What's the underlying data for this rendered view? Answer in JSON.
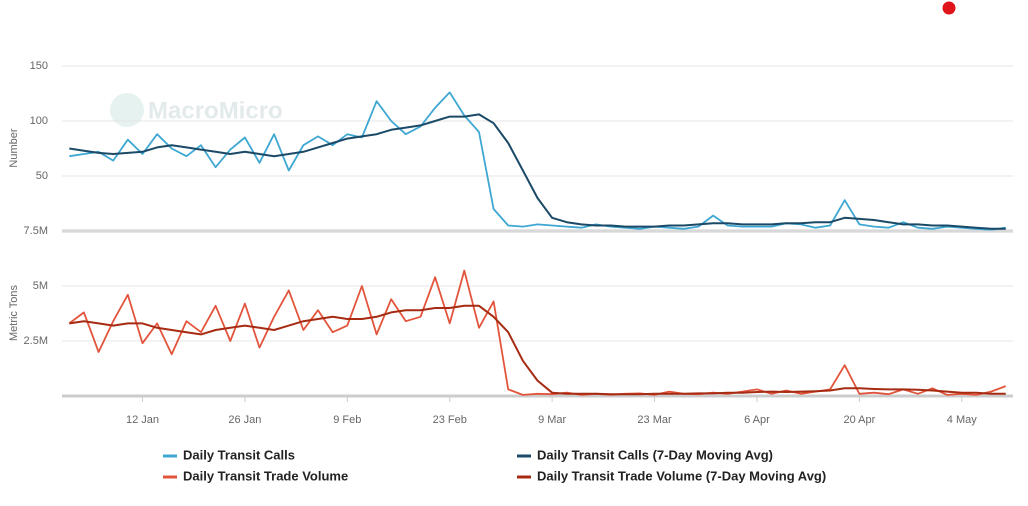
{
  "watermark": "MacroMicro",
  "chart_data": [
    {
      "type": "line",
      "ylabel": "Number",
      "ylim": [
        0,
        150
      ],
      "yticks": [
        50,
        100,
        150
      ],
      "grid": true,
      "series": [
        {
          "name": "Daily Transit Calls",
          "color": "#3ea7d2",
          "values": [
            68,
            70,
            72,
            64,
            83,
            70,
            88,
            75,
            68,
            78,
            58,
            74,
            85,
            62,
            88,
            55,
            78,
            86,
            78,
            88,
            85,
            118,
            100,
            88,
            95,
            112,
            126,
            105,
            90,
            20,
            5,
            4,
            6,
            5,
            4,
            3,
            6,
            4,
            3,
            2,
            4,
            3,
            2,
            4,
            14,
            5,
            4,
            4,
            4,
            7,
            6,
            3,
            5,
            28,
            6,
            4,
            3,
            8,
            3,
            2,
            4,
            3,
            2,
            1,
            3
          ]
        },
        {
          "name": "Daily Transit Calls (7-Day Moving Avg)",
          "color": "#1b4a68",
          "values": [
            75,
            73,
            71,
            70,
            71,
            72,
            76,
            78,
            76,
            74,
            72,
            70,
            72,
            70,
            68,
            70,
            72,
            76,
            80,
            84,
            86,
            88,
            92,
            94,
            96,
            100,
            104,
            104,
            106,
            98,
            80,
            55,
            30,
            12,
            8,
            6,
            5,
            5,
            4,
            4,
            4,
            5,
            5,
            6,
            7,
            7,
            6,
            6,
            6,
            7,
            7,
            8,
            8,
            12,
            11,
            10,
            8,
            6,
            6,
            5,
            5,
            4,
            3,
            2,
            2
          ]
        }
      ]
    },
    {
      "type": "line",
      "ylabel": "Metric Tons",
      "ylim": [
        0,
        7500000
      ],
      "yticks": [
        {
          "value": 2500000,
          "label": "2.5M"
        },
        {
          "value": 5000000,
          "label": "5M"
        },
        {
          "value": 7500000,
          "label": "7.5M"
        }
      ],
      "grid": true,
      "categories": [
        null,
        null,
        null,
        null,
        null,
        "12 Jan",
        null,
        null,
        null,
        null,
        null,
        null,
        "26 Jan",
        null,
        null,
        null,
        null,
        null,
        null,
        "9 Feb",
        null,
        null,
        null,
        null,
        null,
        null,
        "23 Feb",
        null,
        null,
        null,
        null,
        null,
        null,
        "9 Mar",
        null,
        null,
        null,
        null,
        null,
        null,
        "23 Mar",
        null,
        null,
        null,
        null,
        null,
        null,
        "6 Apr",
        null,
        null,
        null,
        null,
        null,
        null,
        "20 Apr",
        null,
        null,
        null,
        null,
        null,
        null,
        "4 May",
        null,
        null,
        null
      ],
      "series": [
        {
          "name": "Daily Transit Trade Volume",
          "color": "#e2553c",
          "values": [
            3300000,
            3800000,
            2000000,
            3400000,
            4600000,
            2400000,
            3300000,
            1900000,
            3400000,
            2900000,
            4100000,
            2500000,
            4200000,
            2200000,
            3600000,
            4800000,
            3000000,
            3900000,
            2900000,
            3200000,
            5000000,
            2800000,
            4400000,
            3400000,
            3600000,
            5400000,
            3300000,
            5700000,
            3100000,
            4300000,
            300000,
            50000,
            100000,
            80000,
            150000,
            50000,
            100000,
            60000,
            100000,
            120000,
            50000,
            200000,
            100000,
            80000,
            150000,
            100000,
            200000,
            300000,
            100000,
            250000,
            100000,
            200000,
            300000,
            1400000,
            100000,
            150000,
            80000,
            300000,
            100000,
            350000,
            50000,
            100000,
            50000,
            200000,
            450000
          ]
        },
        {
          "name": "Daily Transit Trade Volume (7-Day Moving Avg)",
          "color": "#a62b12",
          "values": [
            3300000,
            3400000,
            3300000,
            3200000,
            3300000,
            3300000,
            3100000,
            3000000,
            2900000,
            2800000,
            3000000,
            3100000,
            3200000,
            3100000,
            3000000,
            3200000,
            3400000,
            3500000,
            3600000,
            3500000,
            3500000,
            3600000,
            3800000,
            3900000,
            3900000,
            4000000,
            4000000,
            4100000,
            4100000,
            3600000,
            2900000,
            1600000,
            700000,
            150000,
            100000,
            100000,
            100000,
            80000,
            80000,
            80000,
            100000,
            100000,
            100000,
            120000,
            120000,
            150000,
            150000,
            180000,
            200000,
            180000,
            200000,
            220000,
            250000,
            350000,
            350000,
            320000,
            300000,
            300000,
            280000,
            250000,
            200000,
            150000,
            150000,
            100000,
            100000
          ]
        }
      ]
    }
  ]
}
